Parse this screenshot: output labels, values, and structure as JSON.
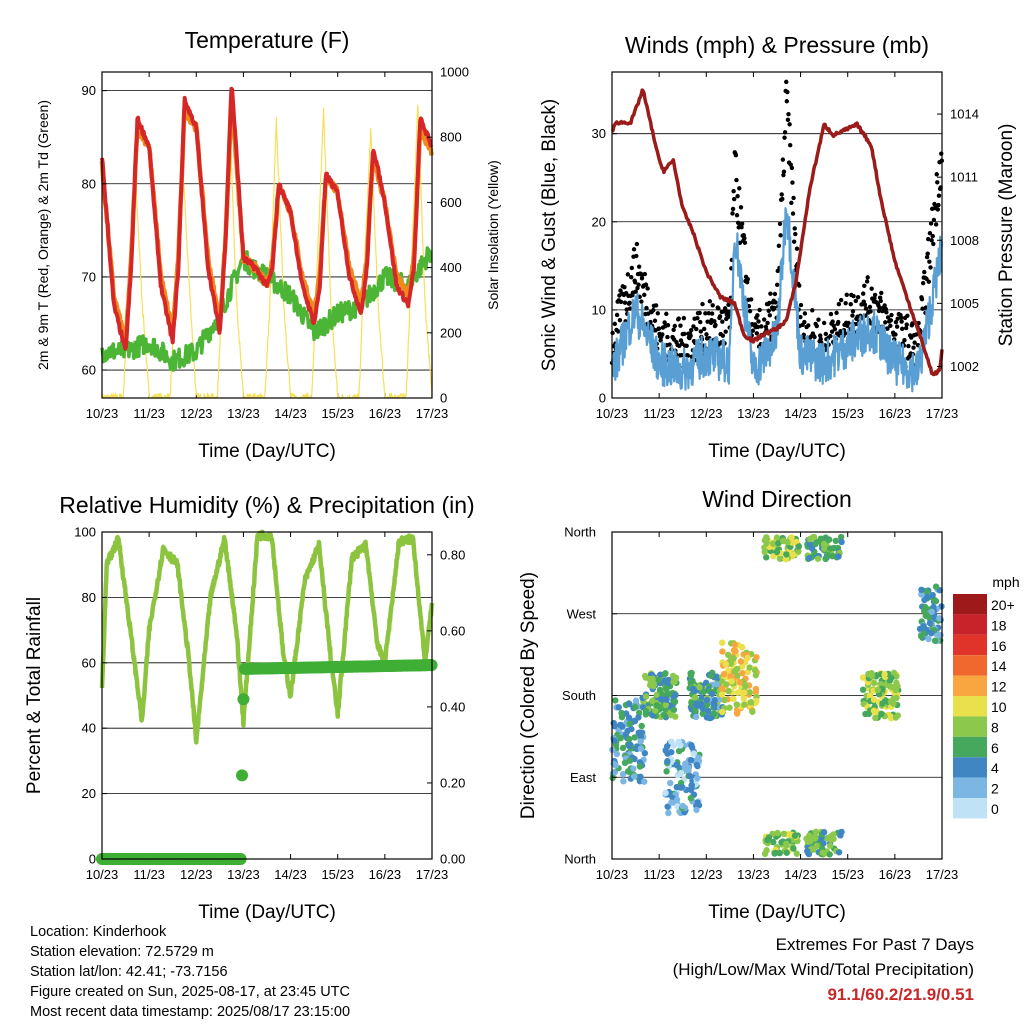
{
  "chart_data": [
    {
      "type": "line",
      "title": "Temperature (F)",
      "xlabel": "Time (Day/UTC)",
      "ylabel": "2m & 9m T (Red, Orange) & 2m Td (Green)",
      "y2label": "Solar Insolation (Yellow)",
      "xticks": [
        "10/23",
        "11/23",
        "12/23",
        "13/23",
        "14/23",
        "15/23",
        "16/23",
        "17/23"
      ],
      "ylim": [
        57,
        92
      ],
      "yticks": [
        60,
        70,
        80,
        90
      ],
      "y2lim": [
        0,
        1000
      ],
      "y2ticks": [
        0,
        200,
        400,
        600,
        800,
        1000
      ],
      "grid": true,
      "series": [
        {
          "color": "#ef8a1d",
          "x": [
            0,
            0.25,
            0.5,
            0.62,
            0.75,
            1.0,
            1.25,
            1.5,
            1.62,
            1.75,
            2.0,
            2.25,
            2.5,
            2.62,
            2.75,
            3.0,
            3.25,
            3.5,
            3.62,
            3.75,
            4.0,
            4.25,
            4.5,
            4.62,
            4.75,
            5.0,
            5.25,
            5.5,
            5.62,
            5.75,
            6.0,
            6.25,
            6.5,
            6.62,
            6.75,
            7.0
          ],
          "values": [
            82,
            68,
            63,
            72,
            86,
            84,
            70,
            64,
            72,
            88,
            86,
            72,
            65,
            74,
            89,
            72,
            71,
            69,
            72,
            80,
            77,
            70,
            66,
            70,
            81,
            79,
            71,
            67,
            72,
            83,
            78,
            70,
            68,
            72,
            86,
            83
          ]
        },
        {
          "color": "#d62728",
          "x": [
            0,
            0.25,
            0.5,
            0.62,
            0.75,
            1.0,
            1.25,
            1.5,
            1.62,
            1.75,
            2.0,
            2.25,
            2.5,
            2.62,
            2.75,
            3.0,
            3.25,
            3.5,
            3.62,
            3.75,
            4.0,
            4.25,
            4.5,
            4.62,
            4.75,
            5.0,
            5.25,
            5.5,
            5.62,
            5.75,
            6.0,
            6.25,
            6.5,
            6.62,
            6.75,
            7.0
          ],
          "values": [
            83,
            67,
            62,
            71,
            87,
            84,
            69,
            63,
            71,
            89,
            86,
            71,
            64,
            74,
            91,
            72,
            71,
            69,
            71,
            80,
            77,
            69,
            65,
            69,
            81,
            79,
            70,
            66,
            71,
            84,
            78,
            69,
            67,
            71,
            87,
            84
          ]
        },
        {
          "color": "#4db535",
          "x": [
            0,
            0.5,
            1.0,
            1.5,
            2.0,
            2.5,
            3.0,
            3.2,
            3.5,
            4.0,
            4.5,
            5.0,
            5.5,
            6.0,
            6.5,
            7.0
          ],
          "values": [
            62,
            62,
            63,
            61,
            62,
            66,
            72,
            71,
            70,
            68,
            64,
            66,
            67,
            70,
            69,
            73
          ]
        },
        {
          "color": "#f6e05a",
          "x": [
            0,
            0.45,
            0.55,
            0.7,
            0.85,
            1.0,
            1.45,
            1.55,
            1.7,
            1.85,
            2.0,
            2.45,
            2.55,
            2.7,
            2.85,
            3.0,
            3.45,
            3.55,
            3.7,
            3.85,
            4.0,
            4.45,
            4.55,
            4.7,
            4.85,
            5.0,
            5.45,
            5.55,
            5.7,
            5.85,
            6.0,
            6.45,
            6.55,
            6.7,
            6.85,
            7.0
          ],
          "values": [
            0,
            0,
            300,
            700,
            300,
            0,
            0,
            350,
            750,
            350,
            0,
            0,
            350,
            900,
            300,
            0,
            0,
            250,
            850,
            300,
            0,
            0,
            350,
            880,
            300,
            0,
            0,
            350,
            820,
            300,
            0,
            0,
            350,
            900,
            300,
            0
          ]
        }
      ]
    },
    {
      "type": "scatter",
      "title": "Winds (mph) & Pressure (mb)",
      "xlabel": "Time (Day/UTC)",
      "ylabel": "Sonic Wind & Gust (Blue, Black)",
      "y2label": "Station Pressure (Maroon)",
      "xticks": [
        "10/23",
        "11/23",
        "12/23",
        "13/23",
        "14/23",
        "15/23",
        "16/23",
        "17/23"
      ],
      "ylim": [
        0,
        37
      ],
      "yticks": [
        0,
        10,
        20,
        30
      ],
      "y2lim": [
        1000.5,
        1016
      ],
      "y2ticks": [
        1002,
        1005,
        1008,
        1011,
        1014
      ],
      "grid": true,
      "series": [
        {
          "name": "Pressure",
          "color": "#9b1b1b",
          "x": [
            0,
            0.1,
            0.4,
            0.6,
            0.65,
            1.0,
            1.1,
            1.3,
            1.5,
            1.7,
            2.0,
            2.3,
            2.6,
            2.8,
            3.0,
            3.2,
            3.5,
            3.7,
            3.9,
            4.2,
            4.5,
            4.7,
            4.9,
            5.2,
            5.5,
            5.7,
            6.0,
            6.3,
            6.6,
            6.8,
            6.95,
            7.0
          ],
          "values": [
            1013.2,
            1013.6,
            1013.6,
            1014.8,
            1015.2,
            1011.8,
            1011.3,
            1011.8,
            1009.5,
            1008.5,
            1006.5,
            1005.3,
            1005.0,
            1003.5,
            1003.2,
            1003.5,
            1003.8,
            1004.2,
            1006.0,
            1010.5,
            1013.5,
            1013.0,
            1013.2,
            1013.5,
            1012.5,
            1010.0,
            1007.0,
            1005.0,
            1003.0,
            1001.6,
            1001.8,
            1002.8
          ]
        },
        {
          "name": "Gust",
          "color": "#000000",
          "x": [
            0,
            0.5,
            1.0,
            1.5,
            2.0,
            2.5,
            2.6,
            3.0,
            3.5,
            3.7,
            4.0,
            4.5,
            5.0,
            5.5,
            6.0,
            6.5,
            7.0
          ],
          "values": [
            6,
            15,
            7,
            6,
            8,
            8,
            26,
            6,
            10,
            34,
            8,
            6,
            9,
            11,
            7,
            6,
            28
          ]
        },
        {
          "name": "Wind",
          "color": "#5a9fd4",
          "x": [
            0,
            0.5,
            1.0,
            1.5,
            2.0,
            2.5,
            2.6,
            3.0,
            3.5,
            3.7,
            4.0,
            4.5,
            5.0,
            5.5,
            6.0,
            6.5,
            7.0
          ],
          "values": [
            3,
            10,
            4,
            3,
            5,
            4,
            19,
            3,
            7,
            22,
            5,
            4,
            6,
            8,
            4,
            3,
            17
          ]
        }
      ]
    },
    {
      "type": "line",
      "title": "Relative Humidity (%) & Precipitation (in)",
      "xlabel": "Time (Day/UTC)",
      "ylabel": "Percent & Total Rainfall",
      "xticks": [
        "10/23",
        "11/23",
        "12/23",
        "13/23",
        "14/23",
        "15/23",
        "16/23",
        "17/23"
      ],
      "ylim": [
        0,
        100
      ],
      "yticks": [
        0,
        20,
        40,
        60,
        80,
        100
      ],
      "y2lim": [
        0,
        0.86
      ],
      "y2ticks": [
        "0.00",
        "0.20",
        "0.40",
        "0.60",
        "0.80"
      ],
      "grid": true,
      "series": [
        {
          "color": "#8dc43f",
          "x": [
            0,
            0.1,
            0.35,
            0.6,
            0.85,
            1.0,
            1.3,
            1.6,
            1.85,
            2.0,
            2.3,
            2.6,
            2.85,
            3.0,
            3.3,
            3.6,
            3.85,
            4.0,
            4.3,
            4.6,
            4.85,
            5.0,
            5.3,
            5.6,
            5.85,
            6.0,
            6.3,
            6.6,
            6.85,
            7.0
          ],
          "values": [
            52,
            90,
            98,
            70,
            42,
            70,
            95,
            90,
            60,
            36,
            80,
            98,
            70,
            42,
            99,
            99,
            62,
            50,
            85,
            96,
            62,
            44,
            92,
            96,
            65,
            60,
            97,
            98,
            60,
            78
          ]
        },
        {
          "color": "#3fae35",
          "x": [
            0,
            2.95,
            2.97,
            3.0,
            3.02,
            7.0
          ],
          "values": [
            0,
            0,
            0.22,
            0.42,
            0.5,
            0.51
          ]
        }
      ]
    },
    {
      "type": "scatter",
      "title": "Wind Direction",
      "xlabel": "Time (Day/UTC)",
      "ylabel": "Direction (Colored By Speed)",
      "xticks": [
        "10/23",
        "11/23",
        "12/23",
        "13/23",
        "14/23",
        "15/23",
        "16/23",
        "17/23"
      ],
      "yticks": [
        "North",
        "East",
        "South",
        "West",
        "North"
      ],
      "grid": true,
      "legend_title": "mph",
      "legend_labels": [
        "20+",
        "18",
        "16",
        "14",
        "12",
        "10",
        "8",
        "6",
        "4",
        "2",
        "0"
      ],
      "legend_colors": [
        "#9e1a1a",
        "#c8222a",
        "#e0342a",
        "#f0682e",
        "#f9a640",
        "#e9e04b",
        "#8cc84b",
        "#45a85c",
        "#3f86c3",
        "#7cb7e3",
        "#bfe2f7"
      ],
      "clusters": [
        {
          "x": 0.35,
          "dir": "east-south",
          "speed": 4
        },
        {
          "x": 1.0,
          "dir": "south",
          "speed": 6
        },
        {
          "x": 1.5,
          "dir": "east",
          "speed": 3
        },
        {
          "x": 2.0,
          "dir": "south",
          "speed": 5
        },
        {
          "x": 2.7,
          "dir": "south-west",
          "speed": 10
        },
        {
          "x": 3.6,
          "dir": "north",
          "speed": 8
        },
        {
          "x": 4.5,
          "dir": "north",
          "speed": 6
        },
        {
          "x": 5.7,
          "dir": "south",
          "speed": 8
        },
        {
          "x": 6.9,
          "dir": "west",
          "speed": 4
        }
      ]
    }
  ],
  "footer": {
    "location": "Location: Kinderhook",
    "elevation": "Station elevation: 72.5729 m",
    "latlon": "Station lat/lon: 42.41; -73.7156",
    "created": "Figure created on Sun, 2025-08-17, at 23:45 UTC",
    "recent": "Most recent data timestamp: 2025/08/17 23:15:00"
  },
  "extremes": {
    "title": "Extremes For Past 7 Days",
    "subtitle": "(High/Low/Max Wind/Total Precipitation)",
    "values": "91.1/60.2/21.9/0.51"
  }
}
